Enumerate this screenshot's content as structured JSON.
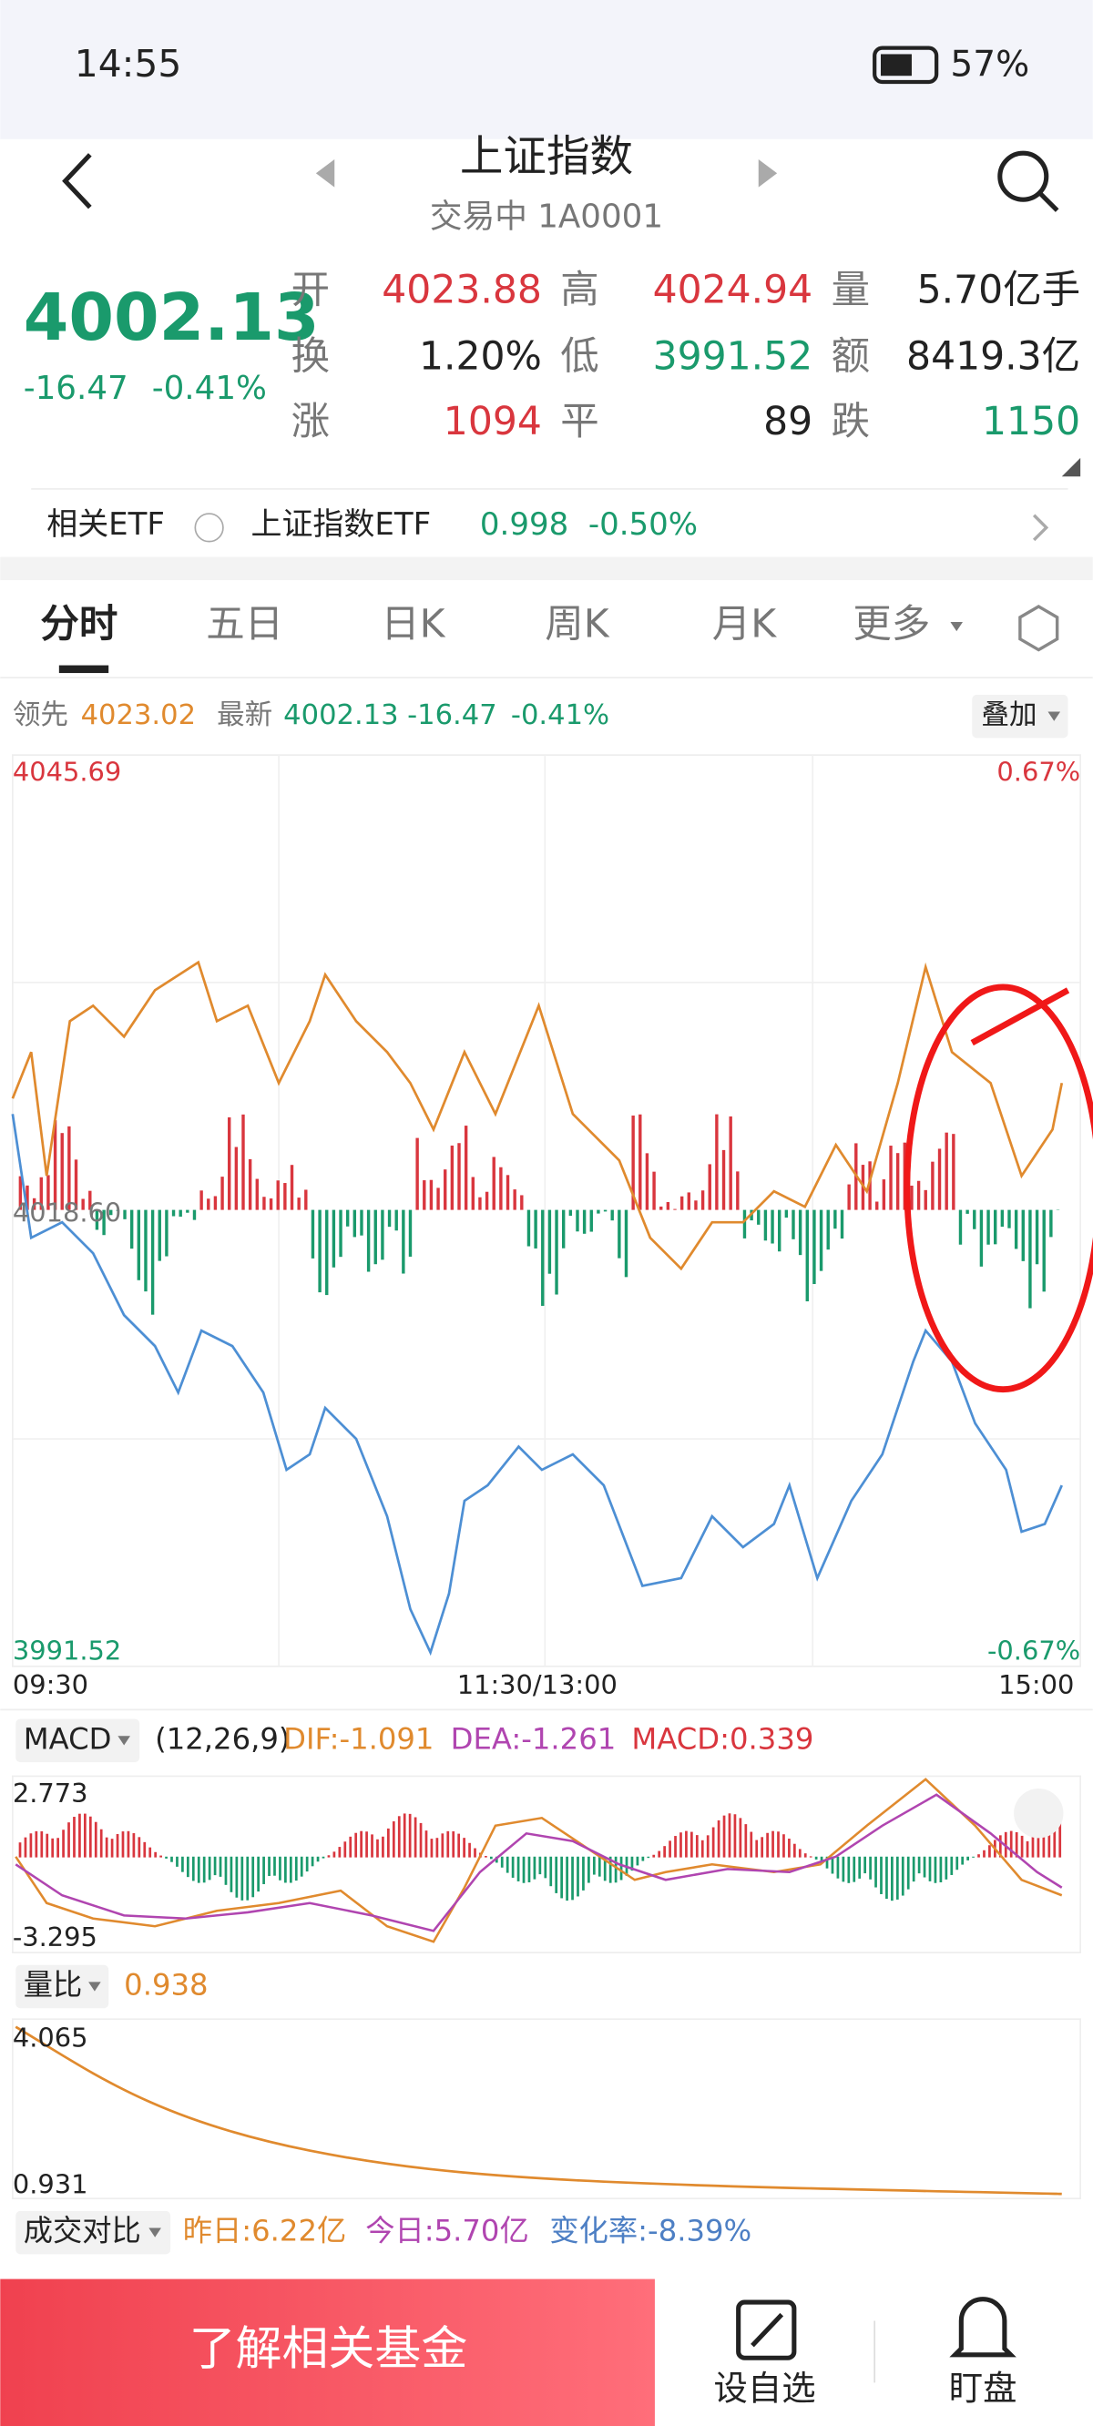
{
  "status": {
    "time": "14:55",
    "battery": "57%"
  },
  "header": {
    "title": "上证指数",
    "subtitle": "交易中 1A0001"
  },
  "quote": {
    "price": "4002.13",
    "change": "-16.47",
    "pct": "-0.41%",
    "stats": [
      [
        "开",
        "4023.88"
      ],
      [
        "高",
        "4024.94"
      ],
      [
        "量",
        "5.70亿手"
      ],
      [
        "换",
        "1.20%"
      ],
      [
        "低",
        "3991.52"
      ],
      [
        "额",
        "8419.3亿"
      ],
      [
        "涨",
        "1094"
      ],
      [
        "平",
        "89"
      ],
      [
        "跌",
        "1150"
      ]
    ]
  },
  "etf": {
    "label": "相关ETF",
    "name": "上证指数ETF",
    "price": "0.998",
    "pct": "-0.50%"
  },
  "tabs": [
    "分时",
    "五日",
    "日K",
    "周K",
    "月K",
    "更多"
  ],
  "chart_info": {
    "lead_label": "领先",
    "lead": "4023.02",
    "latest_label": "最新",
    "latest": "4002.13",
    "change": "-16.47",
    "pct": "-0.41%",
    "overlay": "叠加"
  },
  "axis": {
    "top": "4045.69",
    "top_pct": "0.67%",
    "mid": "4018.60",
    "bottom": "3991.52",
    "bottom_pct": "-0.67%",
    "times": [
      "09:30",
      "11:30/13:00",
      "15:00"
    ]
  },
  "macd": {
    "label": "MACD",
    "params": "(12,26,9)",
    "dif": "DIF:-1.091",
    "dea": "DEA:-1.261",
    "macd": "MACD:0.339",
    "top": "2.773",
    "bottom": "-3.295"
  },
  "volume_ratio": {
    "label": "量比",
    "value": "0.938",
    "top": "4.065",
    "bottom": "0.931"
  },
  "compare": {
    "label": "成交对比",
    "yesterday": "昨日:6.22亿",
    "today": "今日:5.70亿",
    "change": "变化率:-8.39%"
  },
  "bottom_bar": {
    "button": "了解相关基金",
    "actions": [
      "设自选",
      "盯盘"
    ]
  }
}
